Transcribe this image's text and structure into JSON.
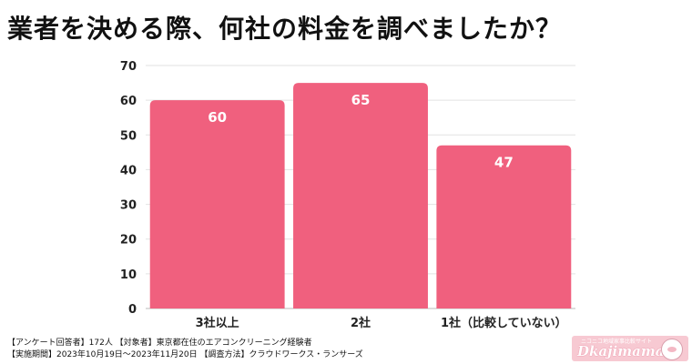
{
  "page": {
    "title": "業者を決める際、何社の料金を調べましたか？"
  },
  "chart_data": {
    "type": "bar",
    "title": "業者を決める際、何社の料金を調べましたか？",
    "categories": [
      "3社以上",
      "2社",
      "1社（比較していない）"
    ],
    "values": [
      60,
      65,
      47
    ],
    "ylim": [
      0,
      70
    ],
    "yticks": [
      0,
      10,
      20,
      30,
      40,
      50,
      60,
      70
    ],
    "grid": true,
    "bar_color": "#f0607e",
    "label_color": "#ffffff"
  },
  "footnotes": {
    "line1": "【アンケート回答者】172人 【対象者】東京都在住のエアコンクリーニング経験者",
    "line2": "【実施期間】2023年10月19日〜2023年11月20日 【調査方法】クラウドワークス・ランサーズ"
  },
  "logo": {
    "subtitle": "ニコニコ地域家事比較サイト",
    "name": "Dkajimama",
    "mascot_icon": "sheep-icon"
  }
}
